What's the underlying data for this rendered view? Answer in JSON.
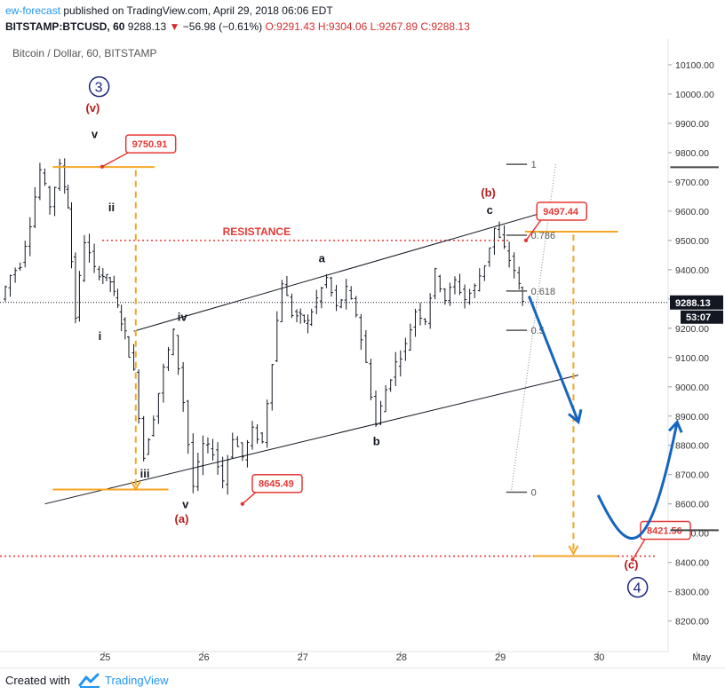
{
  "header": {
    "author": "ew-forecast",
    "published_text": " published on TradingView.com, April 29, 2018 06:06 EDT",
    "symbol": "BITSTAMP:BTCUSD, 60",
    "last": "9288.13",
    "arrow": "▼",
    "change": "−56.98 (−0.61%)",
    "o": "O:9291.43",
    "h": "H:9304.06",
    "l": "L:9267.89",
    "c": "C:9288.13"
  },
  "chart_title": "Bitcoin / Dollar, 60, BITSTAMP",
  "footer": {
    "created": "Created with",
    "brand": "TradingView"
  },
  "chart_data": {
    "type": "candlestick",
    "title": "Bitcoin / Dollar, 60, BITSTAMP",
    "ylim": [
      8150,
      10200
    ],
    "y_ticks": [
      "10100.00",
      "10000.00",
      "9900.00",
      "9800.00",
      "9700.00",
      "9600.00",
      "9500.00",
      "9400.00",
      "9300.00",
      "9200.00",
      "9100.00",
      "9000.00",
      "8900.00",
      "8800.00",
      "8700.00",
      "8600.00",
      "8500.00",
      "8400.00",
      "8300.00",
      "8200.00"
    ],
    "x_ticks": [
      "25",
      "26",
      "27",
      "28",
      "29",
      "30",
      "May"
    ],
    "last_price_label": "9288.13",
    "countdown_label": "53:07",
    "price_path": [
      [
        24.0,
        9300
      ],
      [
        24.1,
        9380
      ],
      [
        24.2,
        9420
      ],
      [
        24.3,
        9560
      ],
      [
        24.4,
        9740
      ],
      [
        24.5,
        9620
      ],
      [
        24.6,
        9751
      ],
      [
        24.67,
        9620
      ],
      [
        24.75,
        9240
      ],
      [
        24.85,
        9500
      ],
      [
        24.95,
        9400
      ],
      [
        25.1,
        9360
      ],
      [
        25.25,
        9180
      ],
      [
        25.35,
        9050
      ],
      [
        25.45,
        8760
      ],
      [
        25.55,
        8900
      ],
      [
        25.65,
        9060
      ],
      [
        25.75,
        9185
      ],
      [
        25.85,
        8950
      ],
      [
        25.95,
        8660
      ],
      [
        26.05,
        8800
      ],
      [
        26.15,
        8780
      ],
      [
        26.25,
        8680
      ],
      [
        26.35,
        8830
      ],
      [
        26.45,
        8760
      ],
      [
        26.55,
        8850
      ],
      [
        26.65,
        8810
      ],
      [
        26.75,
        9090
      ],
      [
        26.85,
        9360
      ],
      [
        26.95,
        9250
      ],
      [
        27.1,
        9220
      ],
      [
        27.2,
        9300
      ],
      [
        27.3,
        9370
      ],
      [
        27.4,
        9270
      ],
      [
        27.5,
        9330
      ],
      [
        27.6,
        9250
      ],
      [
        27.7,
        9080
      ],
      [
        27.8,
        8870
      ],
      [
        27.9,
        8990
      ],
      [
        28.0,
        9080
      ],
      [
        28.1,
        9140
      ],
      [
        28.2,
        9260
      ],
      [
        28.3,
        9230
      ],
      [
        28.4,
        9390
      ],
      [
        28.5,
        9300
      ],
      [
        28.6,
        9360
      ],
      [
        28.7,
        9300
      ],
      [
        28.8,
        9340
      ],
      [
        28.9,
        9420
      ],
      [
        29.0,
        9540
      ],
      [
        29.1,
        9470
      ],
      [
        29.2,
        9400
      ],
      [
        29.27,
        9288
      ]
    ],
    "wave_labels": [
      {
        "text": "3",
        "circled": true,
        "color": "#1a237e",
        "x": 24.95,
        "y": 10010
      },
      {
        "text": "(v)",
        "color": "#b71c1c",
        "x": 24.9,
        "y": 9940
      },
      {
        "text": "v",
        "color": "#131722",
        "x": 24.9,
        "y": 9850
      },
      {
        "text": "ii",
        "color": "#131722",
        "x": 25.1,
        "y": 9600
      },
      {
        "text": "i",
        "color": "#131722",
        "x": 24.97,
        "y": 9160
      },
      {
        "text": "iv",
        "color": "#131722",
        "x": 25.8,
        "y": 9225
      },
      {
        "text": "iii",
        "color": "#131722",
        "x": 25.45,
        "y": 8690
      },
      {
        "text": "v",
        "color": "#131722",
        "x": 25.82,
        "y": 8585
      },
      {
        "text": "(a)",
        "color": "#b71c1c",
        "x": 25.8,
        "y": 8535
      },
      {
        "text": "a",
        "color": "#131722",
        "x": 27.2,
        "y": 9425
      },
      {
        "text": "b",
        "color": "#131722",
        "x": 27.75,
        "y": 8800
      },
      {
        "text": "c",
        "color": "#131722",
        "x": 28.9,
        "y": 9590
      },
      {
        "text": "(b)",
        "color": "#b71c1c",
        "x": 28.9,
        "y": 9650
      },
      {
        "text": "(c)",
        "color": "#b71c1c",
        "x": 30.35,
        "y": 8380
      },
      {
        "text": "4",
        "circled": true,
        "color": "#1a237e",
        "x": 30.4,
        "y": 8300
      }
    ],
    "price_callouts": [
      "9750.91",
      "8645.49",
      "9497.44",
      "8421.56"
    ],
    "resistance_label": "RESISTANCE",
    "resistance_level": 9500,
    "target_level": 8421.56,
    "fib_levels": [
      {
        "label": "1",
        "value": 9760
      },
      {
        "label": "0.786",
        "value": 9518
      },
      {
        "label": "0.618",
        "value": 9327
      },
      {
        "label": "0.5",
        "value": 9193
      },
      {
        "label": "0",
        "value": 8640
      }
    ],
    "channel": {
      "upper": [
        [
          25.3,
          9190
        ],
        [
          29.8,
          9630
        ]
      ],
      "lower": [
        [
          24.4,
          8600
        ],
        [
          29.8,
          9040
        ]
      ]
    },
    "forecast_path": [
      [
        29.3,
        9310
      ],
      [
        29.8,
        8880
      ]
    ],
    "forecast_path_2": [
      [
        30.0,
        8630
      ],
      [
        30.3,
        8480
      ],
      [
        30.5,
        8470
      ],
      [
        30.8,
        8880
      ]
    ]
  },
  "colors": {
    "accent": "#2196f3",
    "down": "#d32f2f",
    "wave_red": "#b71c1c",
    "wave_navy": "#1a237e",
    "orange": "#f5a623",
    "forecast_blue": "#1565c0"
  }
}
